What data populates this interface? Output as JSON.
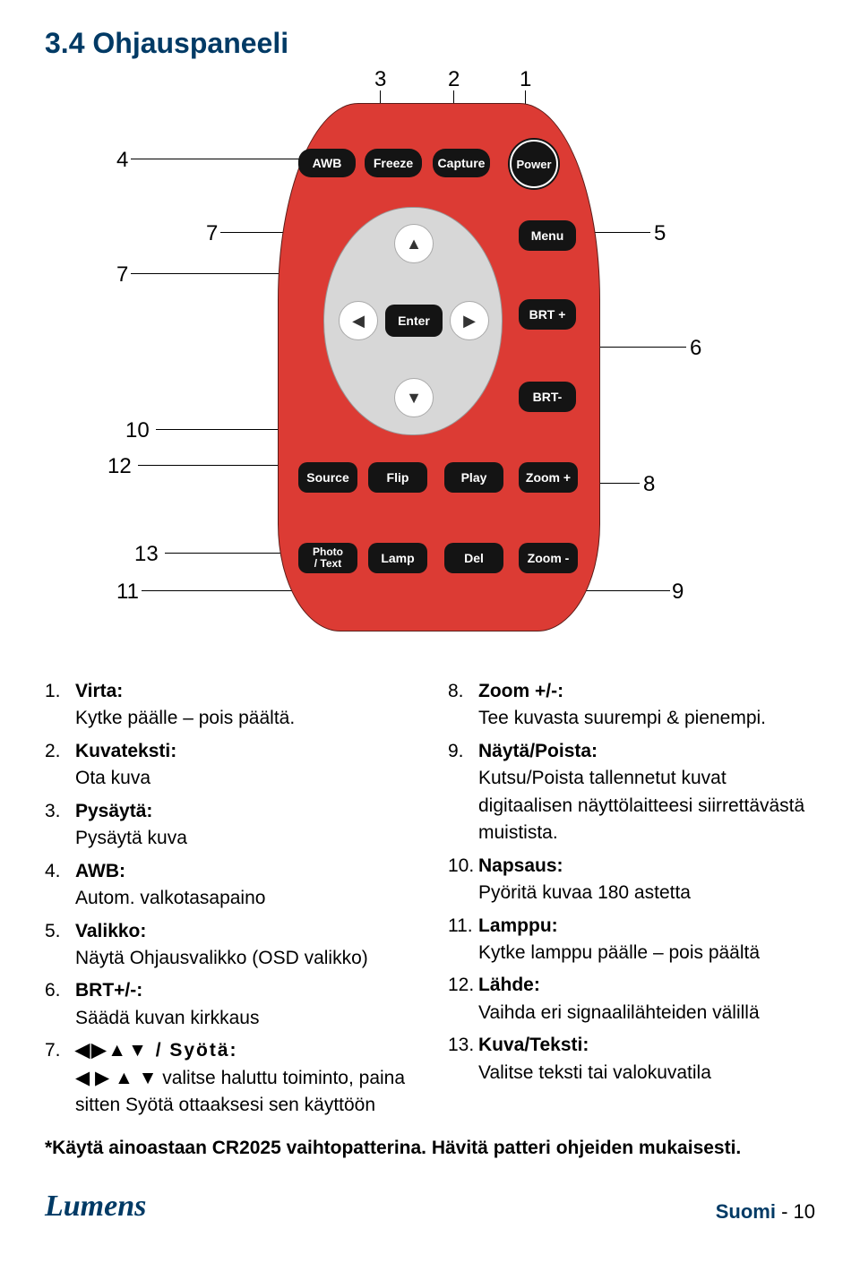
{
  "section_title": "3.4 Ohjauspaneeli",
  "device": {
    "color": "#dc3b34",
    "top_row": {
      "awb": "AWB",
      "freeze": "Freeze",
      "capture": "Capture",
      "power": "Power"
    },
    "dpad": {
      "enter": "Enter"
    },
    "right_col": {
      "menu": "Menu",
      "brt_plus": "BRT +",
      "brt_minus": "BRT-"
    },
    "row3": {
      "source": "Source",
      "flip": "Flip",
      "play": "Play",
      "zoom_plus": "Zoom +"
    },
    "row4": {
      "photo_text": "Photo\n/ Text",
      "lamp": "Lamp",
      "del": "Del",
      "zoom_minus": "Zoom -"
    }
  },
  "callouts": {
    "c1": "1",
    "c2": "2",
    "c3": "3",
    "c4": "4",
    "c5": "5",
    "c6": "6",
    "c7": "7",
    "c8": "8",
    "c9": "9",
    "c10": "10",
    "c11": "11",
    "c12": "12",
    "c13": "13"
  },
  "list_left": [
    {
      "n": "1.",
      "term": "Virta:",
      "desc": "Kytke päälle – pois päältä."
    },
    {
      "n": "2.",
      "term": "Kuvateksti:",
      "desc": "Ota kuva"
    },
    {
      "n": "3.",
      "term": "Pysäytä:",
      "desc": "Pysäytä kuva"
    },
    {
      "n": "4.",
      "term": "AWB:",
      "desc": "Autom. valkotasapaino"
    },
    {
      "n": "5.",
      "term": "Valikko:",
      "desc": "Näytä Ohjausvalikko (OSD valikko)"
    },
    {
      "n": "6.",
      "term": "BRT+/-:",
      "desc": "Säädä kuvan kirkkaus"
    },
    {
      "n": "7.",
      "term": "◀▶▲▼ / Syötä:",
      "desc": "◀ ▶ ▲ ▼ valitse haluttu toiminto, paina sitten Syötä ottaaksesi sen käyttöön",
      "arrows": true
    }
  ],
  "list_right": [
    {
      "n": "8.",
      "term": "Zoom +/-:",
      "desc": "Tee kuvasta suurempi & pienempi."
    },
    {
      "n": "9.",
      "term": "Näytä/Poista:",
      "desc": "Kutsu/Poista tallennetut kuvat digitaalisen näyttölaitteesi siirrettävästä muistista."
    },
    {
      "n": "10.",
      "term": "Napsaus:",
      "desc": "Pyöritä kuvaa 180 astetta"
    },
    {
      "n": "11.",
      "term": "Lamppu:",
      "desc": "Kytke lamppu päälle – pois päältä"
    },
    {
      "n": "12.",
      "term": "Lähde:",
      "desc": "Vaihda eri signaalilähteiden välillä"
    },
    {
      "n": "13.",
      "term": "Kuva/Teksti:",
      "desc": "Valitse teksti tai valokuvatila"
    }
  ],
  "footnote": "*Käytä ainoastaan CR2025 vaihtopatterina. Hävitä patteri ohjeiden mukaisesti.",
  "footer": {
    "logo": "Lumens",
    "lang": "Suomi",
    "sep": " - ",
    "page": "10"
  }
}
